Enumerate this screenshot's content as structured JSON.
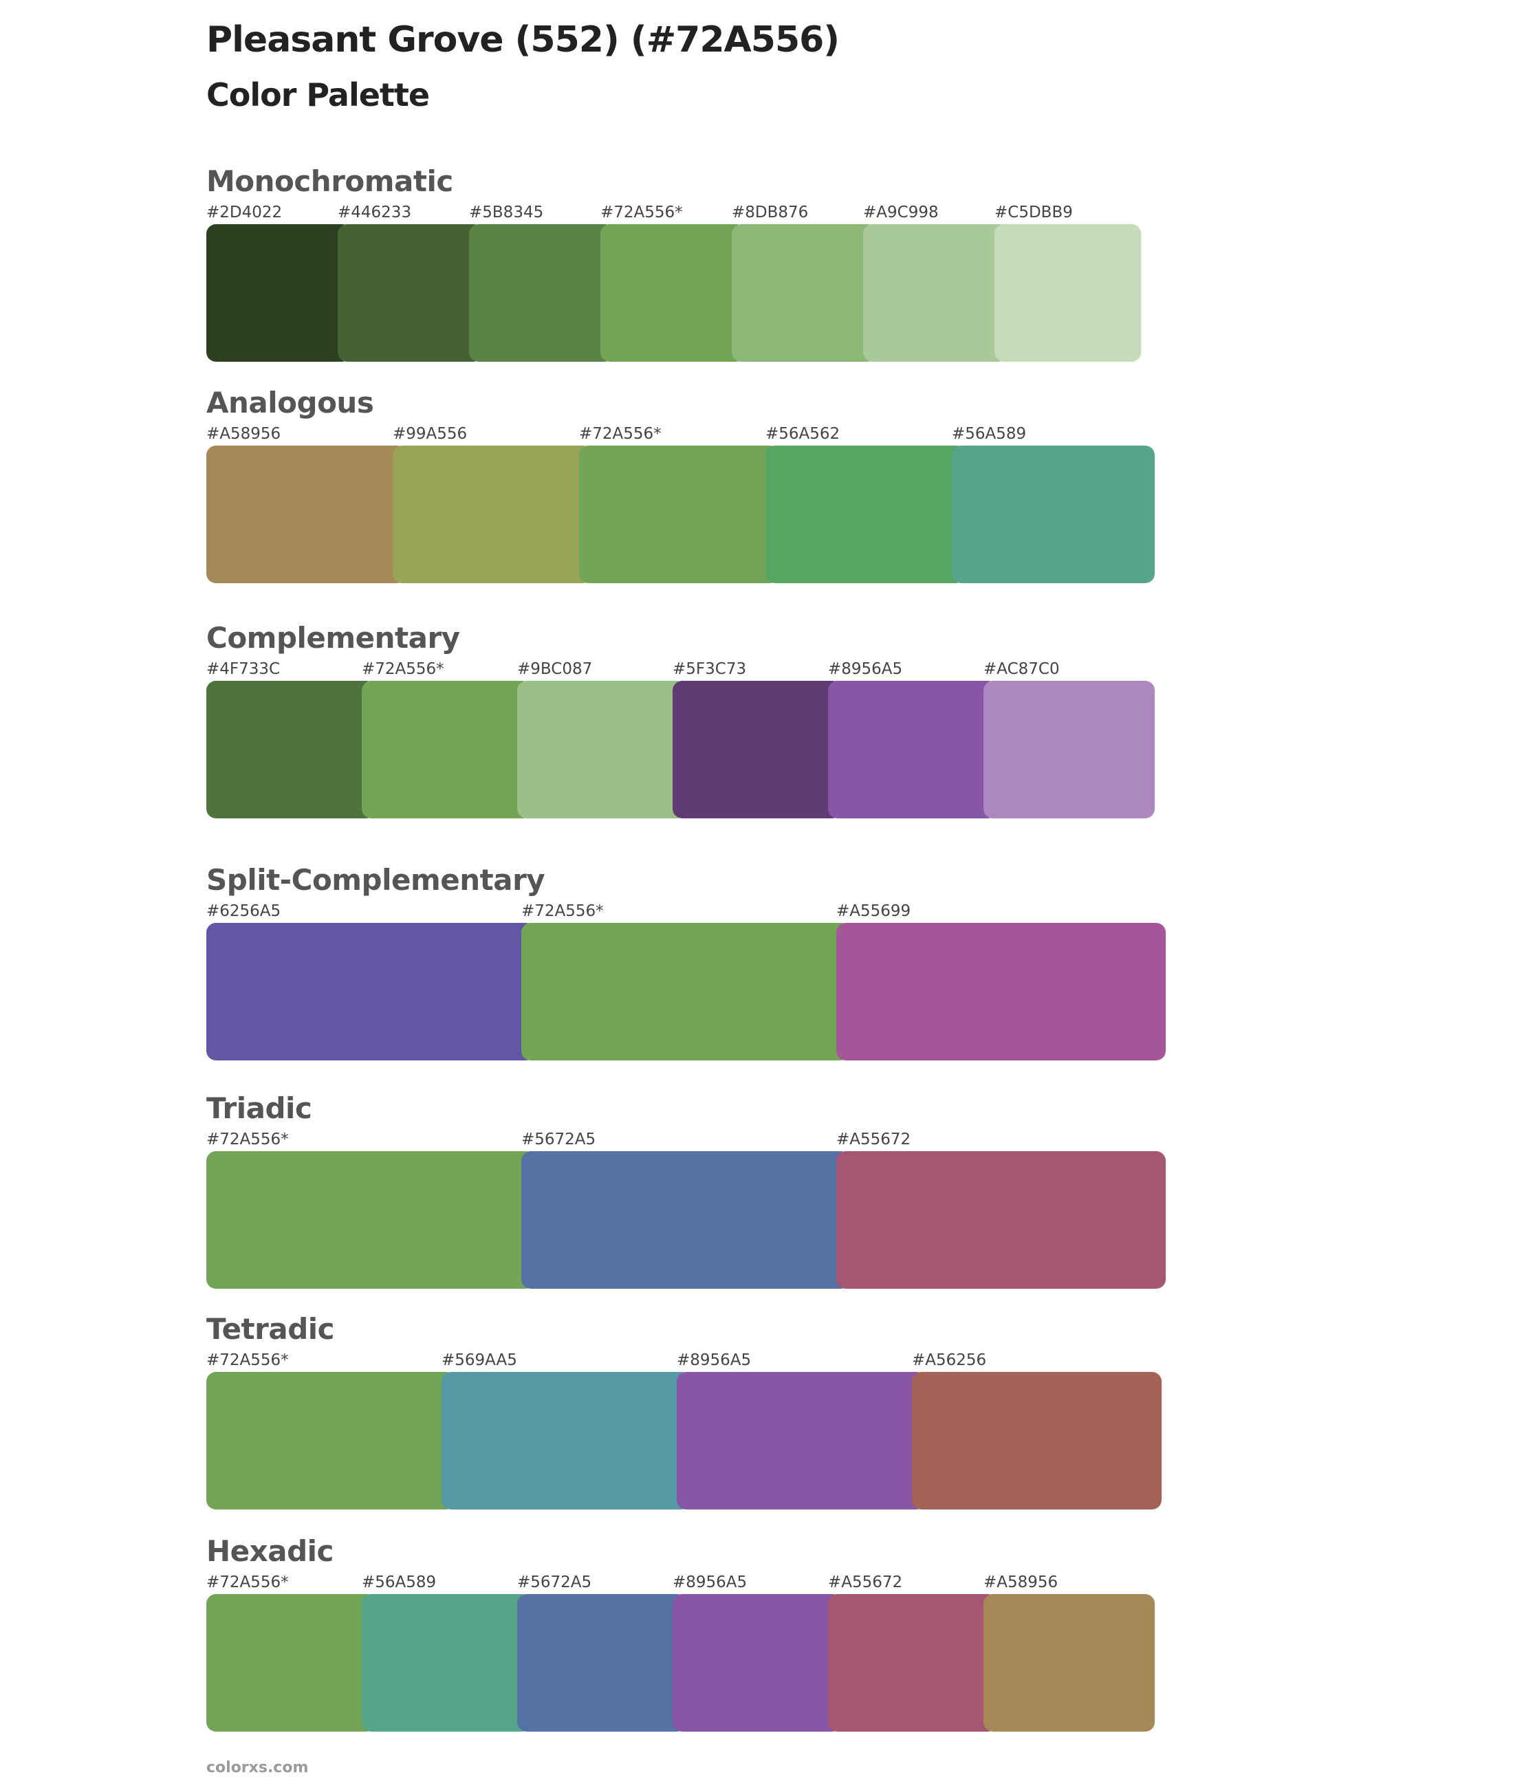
{
  "title": "Pleasant Grove (552) (#72A556)",
  "subtitle": "Color Palette",
  "footer": "colorxs.com",
  "palettes": {
    "monochromatic": {
      "title": "Monochromatic",
      "labels": [
        "#2D4022",
        "#446233",
        "#5B8345",
        "#72A556*",
        "#8DB876",
        "#A9C998",
        "#C5DBB9"
      ],
      "colors": [
        "#2D4022",
        "#446233",
        "#5B8345",
        "#72A556",
        "#8DB876",
        "#A9C998",
        "#C5DBB9"
      ]
    },
    "analogous": {
      "title": "Analogous",
      "labels": [
        "#A58956",
        "#99A556",
        "#72A556*",
        "#56A562",
        "#56A589"
      ],
      "colors": [
        "#A58956",
        "#99A556",
        "#72A556",
        "#56A562",
        "#56A589"
      ]
    },
    "complementary": {
      "title": "Complementary",
      "labels": [
        "#4F733C",
        "#72A556*",
        "#9BC087",
        "#5F3C73",
        "#8956A5",
        "#AC87C0"
      ],
      "colors": [
        "#4F733C",
        "#72A556",
        "#9BC087",
        "#5F3C73",
        "#8956A5",
        "#AC87C0"
      ]
    },
    "split_complementary": {
      "title": "Split-Complementary",
      "labels": [
        "#6256A5",
        "#72A556*",
        "#A55699"
      ],
      "colors": [
        "#6256A5",
        "#72A556",
        "#A55699"
      ]
    },
    "triadic": {
      "title": "Triadic",
      "labels": [
        "#72A556*",
        "#5672A5",
        "#A55672"
      ],
      "colors": [
        "#72A556",
        "#5672A5",
        "#A55672"
      ]
    },
    "tetradic": {
      "title": "Tetradic",
      "labels": [
        "#72A556*",
        "#569AA5",
        "#8956A5",
        "#A56256"
      ],
      "colors": [
        "#72A556",
        "#569AA5",
        "#8956A5",
        "#A56256"
      ]
    },
    "hexadic": {
      "title": "Hexadic",
      "labels": [
        "#72A556*",
        "#56A589",
        "#5672A5",
        "#8956A5",
        "#A55672",
        "#A58956"
      ],
      "colors": [
        "#72A556",
        "#56A589",
        "#5672A5",
        "#8956A5",
        "#A55672",
        "#A58956"
      ]
    }
  }
}
